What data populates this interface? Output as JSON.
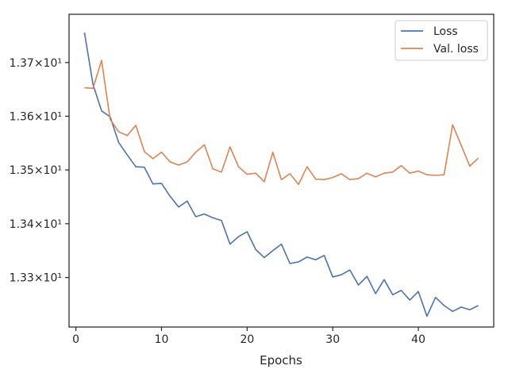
{
  "chart_data": {
    "type": "line",
    "title": "",
    "xlabel": "Epochs",
    "ylabel": "",
    "xlim": [
      -0.8,
      48.8
    ],
    "ylim": [
      13.3208,
      13.379
    ],
    "yscale": "log",
    "grid": false,
    "legend_position": "top-right",
    "x_ticks": [
      0,
      10,
      20,
      30,
      40
    ],
    "x_tick_labels": [
      "0",
      "10",
      "20",
      "30",
      "40"
    ],
    "y_ticks": [
      13.33,
      13.34,
      13.35,
      13.36,
      13.37
    ],
    "y_tick_labels": [
      "1.33×10¹",
      "1.34×10¹",
      "1.35×10¹",
      "1.36×10¹",
      "1.37×10¹"
    ],
    "x": [
      1,
      2,
      3,
      4,
      5,
      6,
      7,
      8,
      9,
      10,
      11,
      12,
      13,
      14,
      15,
      16,
      17,
      18,
      19,
      20,
      21,
      22,
      23,
      24,
      25,
      26,
      27,
      28,
      29,
      30,
      31,
      32,
      33,
      34,
      35,
      36,
      37,
      38,
      39,
      40,
      41,
      42,
      43,
      44,
      45,
      46,
      47
    ],
    "series": [
      {
        "name": "Loss",
        "color": "#4c72b0",
        "values": [
          13.3756,
          13.3659,
          13.361,
          13.3599,
          13.3551,
          13.3528,
          13.3506,
          13.3505,
          13.3474,
          13.3475,
          13.3451,
          13.3431,
          13.3442,
          13.3413,
          13.3418,
          13.3411,
          13.3406,
          13.3362,
          13.3376,
          13.3385,
          13.3352,
          13.3337,
          13.335,
          13.3362,
          13.3326,
          13.3329,
          13.3338,
          13.3333,
          13.3341,
          13.3301,
          13.3305,
          13.3314,
          13.3286,
          13.3302,
          13.327,
          13.3296,
          13.3268,
          13.3276,
          13.3258,
          13.3274,
          13.3228,
          13.3263,
          13.3248,
          13.3237,
          13.3245,
          13.324,
          13.3248
        ]
      },
      {
        "name": "Val. loss",
        "color": "#dd8452",
        "values": [
          13.3653,
          13.3652,
          13.3704,
          13.3594,
          13.3571,
          13.3564,
          13.3583,
          13.3534,
          13.3521,
          13.3533,
          13.3515,
          13.3509,
          13.3515,
          13.3533,
          13.3547,
          13.3502,
          13.3496,
          13.3543,
          13.3506,
          13.3492,
          13.3494,
          13.3478,
          13.3533,
          13.3482,
          13.3493,
          13.3473,
          13.3506,
          13.3483,
          13.3482,
          13.3486,
          13.3493,
          13.3482,
          13.3484,
          13.3494,
          13.3487,
          13.3494,
          13.3496,
          13.3508,
          13.3494,
          13.3498,
          13.3491,
          13.349,
          13.3491,
          13.3584,
          13.3546,
          13.3507,
          13.3522
        ]
      }
    ]
  }
}
